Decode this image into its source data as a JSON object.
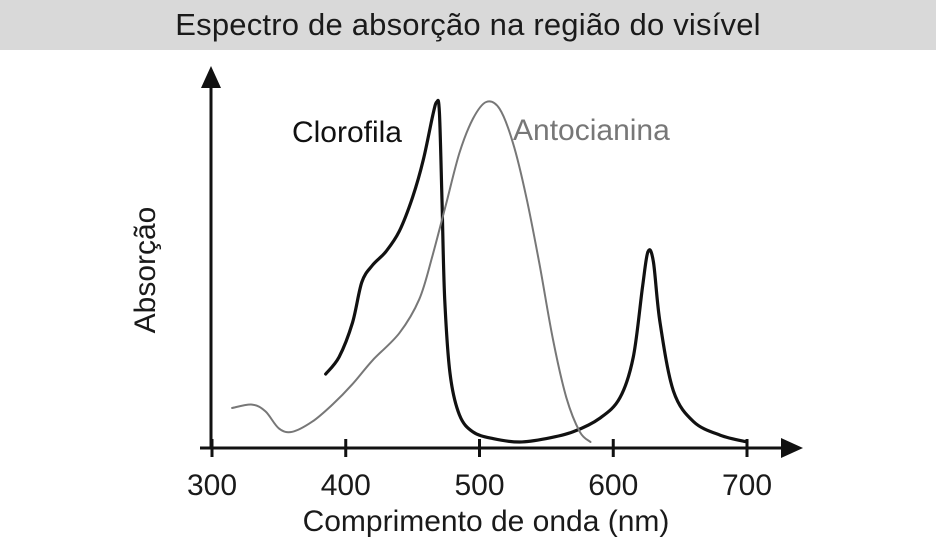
{
  "chart_data": {
    "type": "line",
    "title": "Espectro de absorção na região do visível",
    "xlabel": "Comprimento de onda (nm)",
    "ylabel": "Absorção",
    "xlim": [
      300,
      710
    ],
    "ylim": [
      0,
      1
    ],
    "x_ticks": [
      300,
      400,
      500,
      600,
      700
    ],
    "grid": false,
    "legend": "none",
    "series": [
      {
        "name": "Clorofila",
        "color": "#111111",
        "points": [
          [
            385,
            0.2
          ],
          [
            395,
            0.25
          ],
          [
            405,
            0.35
          ],
          [
            412,
            0.47
          ],
          [
            420,
            0.52
          ],
          [
            430,
            0.56
          ],
          [
            440,
            0.62
          ],
          [
            450,
            0.72
          ],
          [
            458,
            0.83
          ],
          [
            465,
            0.96
          ],
          [
            468,
            1.0
          ],
          [
            470,
            0.97
          ],
          [
            472,
            0.7
          ],
          [
            474,
            0.42
          ],
          [
            478,
            0.2
          ],
          [
            485,
            0.08
          ],
          [
            495,
            0.03
          ],
          [
            510,
            0.01
          ],
          [
            530,
            0.0
          ],
          [
            550,
            0.01
          ],
          [
            570,
            0.03
          ],
          [
            590,
            0.07
          ],
          [
            605,
            0.13
          ],
          [
            615,
            0.25
          ],
          [
            622,
            0.46
          ],
          [
            626,
            0.56
          ],
          [
            630,
            0.53
          ],
          [
            635,
            0.35
          ],
          [
            645,
            0.15
          ],
          [
            660,
            0.06
          ],
          [
            680,
            0.02
          ],
          [
            700,
            0.0
          ]
        ]
      },
      {
        "name": "Antocianina",
        "color": "#777777",
        "points": [
          [
            315,
            0.1
          ],
          [
            330,
            0.11
          ],
          [
            340,
            0.09
          ],
          [
            350,
            0.04
          ],
          [
            360,
            0.03
          ],
          [
            375,
            0.06
          ],
          [
            390,
            0.11
          ],
          [
            405,
            0.17
          ],
          [
            420,
            0.24
          ],
          [
            440,
            0.32
          ],
          [
            455,
            0.42
          ],
          [
            465,
            0.55
          ],
          [
            475,
            0.7
          ],
          [
            485,
            0.85
          ],
          [
            495,
            0.95
          ],
          [
            505,
            1.0
          ],
          [
            515,
            0.98
          ],
          [
            525,
            0.88
          ],
          [
            535,
            0.72
          ],
          [
            545,
            0.52
          ],
          [
            555,
            0.3
          ],
          [
            565,
            0.13
          ],
          [
            575,
            0.03
          ],
          [
            583,
            0.0
          ]
        ]
      }
    ]
  }
}
